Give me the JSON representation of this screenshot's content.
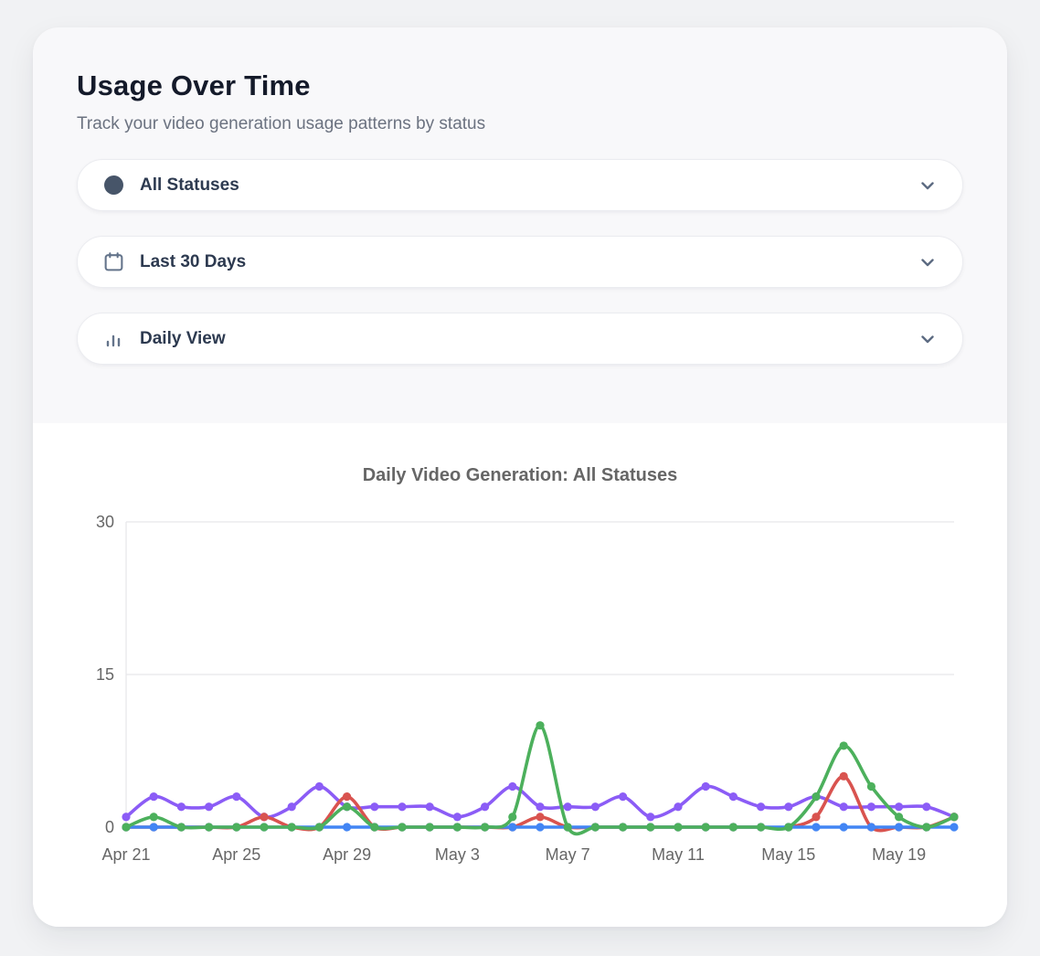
{
  "card": {
    "title": "Usage Over Time",
    "subtitle": "Track your video generation usage patterns by status",
    "filters": [
      {
        "id": "status",
        "icon": "status-circle-icon",
        "label": "All Statuses"
      },
      {
        "id": "range",
        "icon": "calendar-icon",
        "label": "Last 30 Days"
      },
      {
        "id": "view",
        "icon": "bar-chart-icon",
        "label": "Daily View"
      }
    ]
  },
  "chart_data": {
    "type": "line",
    "title": "Daily Video Generation: All Statuses",
    "x": [
      "Apr 21",
      "Apr 22",
      "Apr 23",
      "Apr 24",
      "Apr 25",
      "Apr 26",
      "Apr 27",
      "Apr 28",
      "Apr 29",
      "Apr 30",
      "May 1",
      "May 2",
      "May 3",
      "May 4",
      "May 5",
      "May 6",
      "May 7",
      "May 8",
      "May 9",
      "May 10",
      "May 11",
      "May 12",
      "May 13",
      "May 14",
      "May 15",
      "May 16",
      "May 17",
      "May 18",
      "May 19",
      "May 20",
      "May 21"
    ],
    "x_tick_labels": [
      "Apr 21",
      "Apr 25",
      "Apr 29",
      "May 3",
      "May 7",
      "May 11",
      "May 15",
      "May 19"
    ],
    "x_tick_every": 4,
    "y_ticks": [
      0,
      15,
      30
    ],
    "ylim": [
      0,
      30
    ],
    "grid": true,
    "legend": "none",
    "series": [
      {
        "name": "purple",
        "color": "#8B5CF6",
        "values": [
          1,
          3,
          2,
          2,
          3,
          1,
          2,
          4,
          2,
          2,
          2,
          2,
          1,
          2,
          4,
          2,
          2,
          2,
          3,
          1,
          2,
          4,
          3,
          2,
          2,
          3,
          2,
          2,
          2,
          2,
          1
        ]
      },
      {
        "name": "red",
        "color": "#D9534F",
        "values": [
          0,
          0,
          0,
          0,
          0,
          1,
          0,
          0,
          3,
          0,
          0,
          0,
          0,
          0,
          0,
          1,
          0,
          0,
          0,
          0,
          0,
          0,
          0,
          0,
          0,
          1,
          5,
          0,
          0,
          0,
          1
        ]
      },
      {
        "name": "blue",
        "color": "#4285F4",
        "values": [
          0,
          0,
          0,
          0,
          0,
          0,
          0,
          0,
          0,
          0,
          0,
          0,
          0,
          0,
          0,
          0,
          0,
          0,
          0,
          0,
          0,
          0,
          0,
          0,
          0,
          0,
          0,
          0,
          0,
          0,
          0
        ]
      },
      {
        "name": "green",
        "color": "#4CB05C",
        "values": [
          0,
          1,
          0,
          0,
          0,
          0,
          0,
          0,
          2,
          0,
          0,
          0,
          0,
          0,
          1,
          10,
          0,
          0,
          0,
          0,
          0,
          0,
          0,
          0,
          0,
          3,
          8,
          4,
          1,
          0,
          1
        ]
      }
    ],
    "axis_color": "#666666",
    "grid_color": "#e7e7ea"
  }
}
